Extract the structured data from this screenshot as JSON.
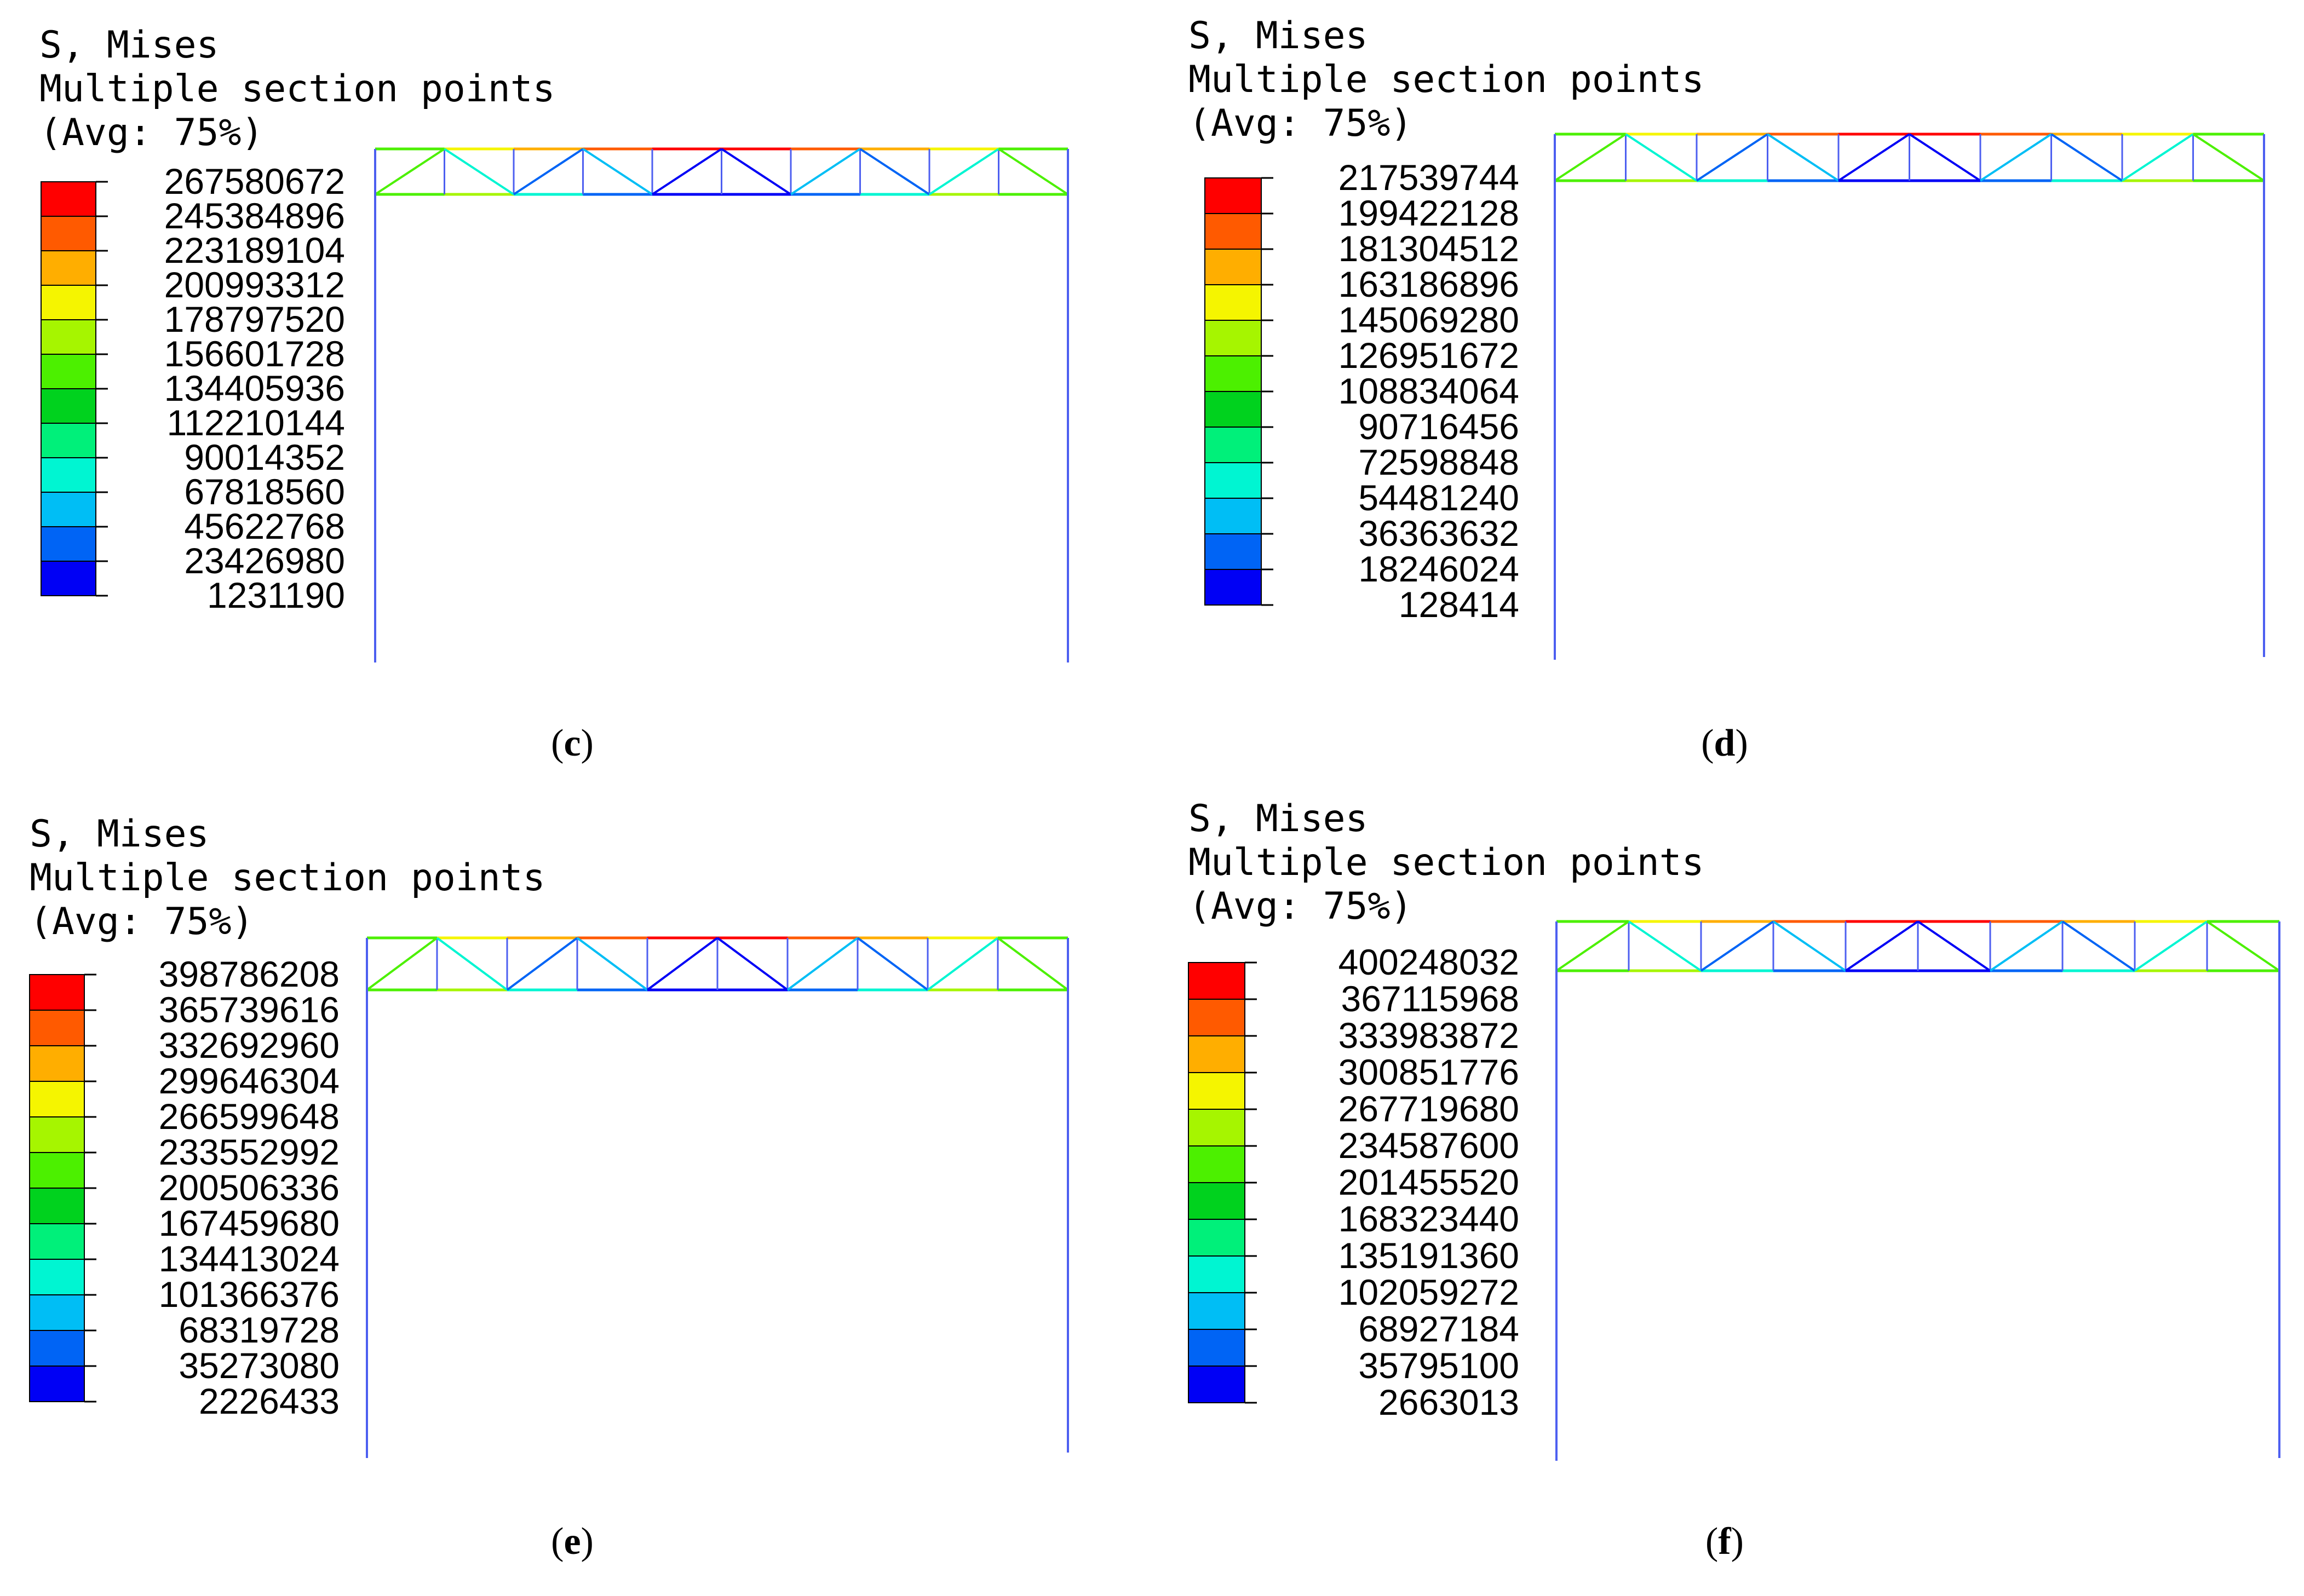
{
  "panels": [
    {
      "id": "c",
      "caption_letter": "c",
      "header": [
        "S, Mises",
        "Multiple section points",
        "(Avg: 75%)"
      ],
      "legend_values": [
        "267580672",
        "245384896",
        "223189104",
        "200993312",
        "178797520",
        "156601728",
        "134405936",
        "112210144",
        "90014352",
        "67818560",
        "45622768",
        "23426980",
        "1231190"
      ]
    },
    {
      "id": "d",
      "caption_letter": "d",
      "header": [
        "S, Mises",
        "Multiple section points",
        "(Avg: 75%)"
      ],
      "legend_values": [
        "217539744",
        "199422128",
        "181304512",
        "163186896",
        "145069280",
        "126951672",
        "108834064",
        "90716456",
        "72598848",
        "54481240",
        "36363632",
        "18246024",
        "128414"
      ]
    },
    {
      "id": "e",
      "caption_letter": "e",
      "header": [
        "S, Mises",
        "Multiple section points",
        "(Avg: 75%)"
      ],
      "legend_values": [
        "398786208",
        "365739616",
        "332692960",
        "299646304",
        "266599648",
        "233552992",
        "200506336",
        "167459680",
        "134413024",
        "101366376",
        "68319728",
        "35273080",
        "2226433"
      ]
    },
    {
      "id": "f",
      "caption_letter": "f",
      "header": [
        "S, Mises",
        "Multiple section points",
        "(Avg: 75%)"
      ],
      "legend_values": [
        "400248032",
        "367115968",
        "333983872",
        "300851776",
        "267719680",
        "234587600",
        "201455520",
        "168323440",
        "135191360",
        "102059272",
        "68927184",
        "35795100",
        "2663013"
      ]
    }
  ],
  "colors": {
    "legend_bands": [
      "#ff0000",
      "#ff5a00",
      "#ffae00",
      "#f5f500",
      "#a6f500",
      "#4cf000",
      "#00d21e",
      "#00f07a",
      "#00f5d2",
      "#00bef5",
      "#0064f5",
      "#0000f5"
    ],
    "frame": "#4d5ff0"
  }
}
